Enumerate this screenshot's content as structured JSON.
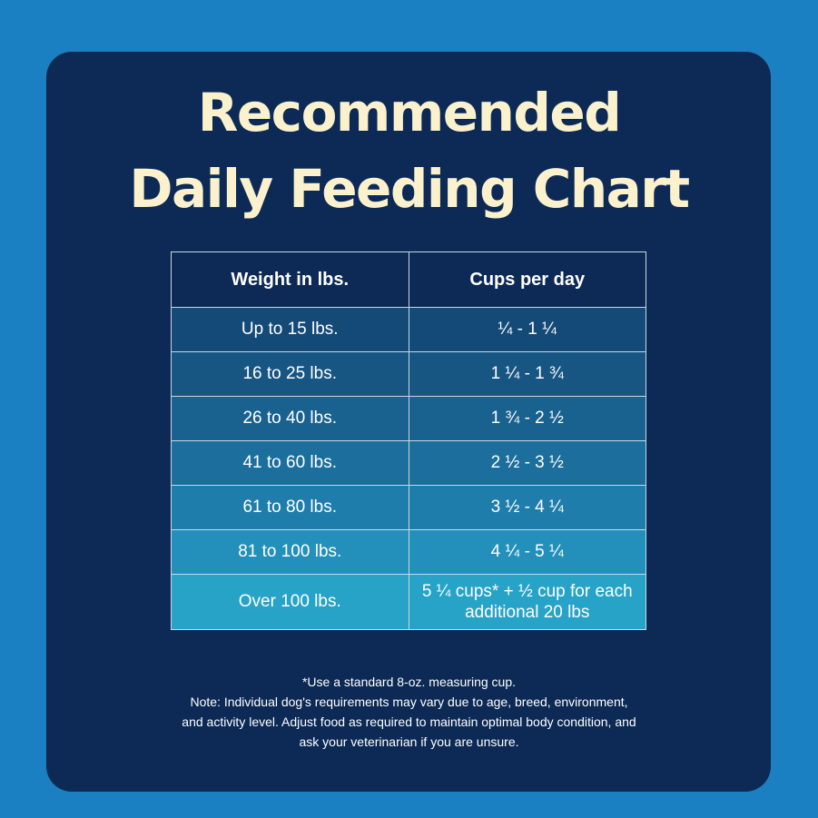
{
  "title": {
    "line1": "Recommended",
    "line2": "Daily Feeding Chart"
  },
  "table": {
    "headers": [
      "Weight in lbs.",
      "Cups per day"
    ],
    "rows": [
      {
        "weight": "Up to 15 lbs.",
        "cups": "¼ - 1 ¼"
      },
      {
        "weight": "16 to 25 lbs.",
        "cups": "1 ¼ - 1 ¾"
      },
      {
        "weight": "26 to 40 lbs.",
        "cups": "1 ¾ - 2 ½"
      },
      {
        "weight": "41 to 60 lbs.",
        "cups": "2 ½ - 3 ½"
      },
      {
        "weight": "61 to 80 lbs.",
        "cups": "3 ½ - 4 ¼"
      },
      {
        "weight": "81 to 100 lbs.",
        "cups": "4 ¼ - 5 ¼"
      },
      {
        "weight": "Over 100 lbs.",
        "cups": "5 ¼ cups* + ½ cup for each additional 20 lbs"
      }
    ]
  },
  "notes": [
    "*Use a standard 8-oz. measuring cup.",
    "Note: Individual dog's requirements may vary due to age, breed, environment,",
    "and activity level. Adjust food as required to maintain optimal body condition, and",
    "ask your veterinarian if you are unsure."
  ],
  "colors": {
    "background": "#1b80c2",
    "card": "#0c2a55",
    "title": "#fbf2cd"
  }
}
